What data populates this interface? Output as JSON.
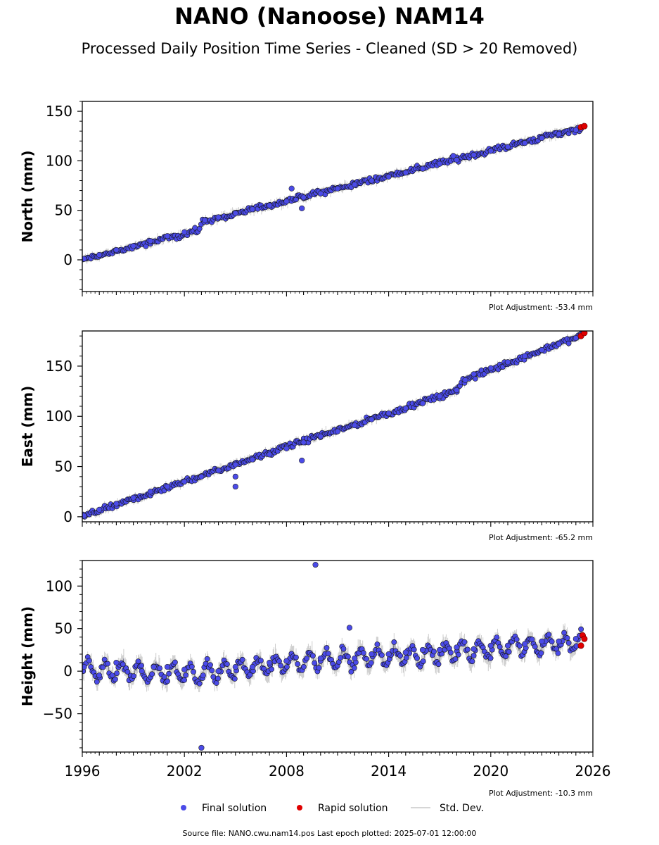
{
  "chart_data": {
    "type": "scatter",
    "title": "NANO (Nanoose) NAM14",
    "subtitle": "Processed Daily Position Time Series - Cleaned (SD > 20 Removed)",
    "source": "Source file: NANO.cwu.nam14.pos  Last epoch plotted: 2025-07-01 12:00:00",
    "xlim": [
      1996,
      2026
    ],
    "x_ticks": [
      1996,
      2002,
      2008,
      2014,
      2020,
      2026
    ],
    "x_tick_labels": [
      "1996",
      "2002",
      "2008",
      "2014",
      "2020",
      "2026"
    ],
    "legend": {
      "placement": "bottom",
      "entries": [
        {
          "label": "Final solution",
          "color": "#4b4be8"
        },
        {
          "label": "Rapid solution",
          "color": "#e00000"
        },
        {
          "label": "Std. Dev.",
          "color": "#c8c8c8"
        }
      ]
    },
    "panels": [
      {
        "ylabel": "North (mm)",
        "ylim": [
          -32,
          160
        ],
        "y_ticks": [
          0,
          50,
          100,
          150
        ],
        "y_tick_labels": [
          "0",
          "50",
          "100",
          "150"
        ],
        "adjustment": "Plot Adjustment: -53.4 mm",
        "trend": [
          [
            1996.0,
            0
          ],
          [
            2002.9,
            30
          ],
          [
            2003.0,
            38
          ],
          [
            2025.5,
            134
          ]
        ],
        "final_points": [
          [
            1996.1,
            1
          ],
          [
            1997.0,
            5
          ],
          [
            1998.0,
            10
          ],
          [
            1999.0,
            14
          ],
          [
            2000.0,
            19
          ],
          [
            2001.0,
            24
          ],
          [
            2002.0,
            28
          ],
          [
            2003.2,
            40
          ],
          [
            2004.0,
            43
          ],
          [
            2005.0,
            47
          ],
          [
            2006.0,
            51
          ],
          [
            2007.0,
            55
          ],
          [
            2008.0,
            59
          ],
          [
            2008.3,
            72
          ],
          [
            2008.9,
            52
          ],
          [
            2009.0,
            63
          ],
          [
            2010.0,
            67
          ],
          [
            2011.0,
            72
          ],
          [
            2012.0,
            76
          ],
          [
            2013.0,
            80
          ],
          [
            2014.0,
            84
          ],
          [
            2015.0,
            88
          ],
          [
            2016.0,
            92
          ],
          [
            2017.0,
            97
          ],
          [
            2017.8,
            105
          ],
          [
            2018.0,
            101
          ],
          [
            2019.0,
            106
          ],
          [
            2020.0,
            110
          ],
          [
            2021.0,
            114
          ],
          [
            2022.0,
            118
          ],
          [
            2023.0,
            123
          ],
          [
            2024.0,
            127
          ],
          [
            2025.0,
            131
          ]
        ],
        "rapid_points": [
          [
            2025.3,
            134
          ],
          [
            2025.5,
            135
          ]
        ]
      },
      {
        "ylabel": "East (mm)",
        "ylim": [
          -5,
          185
        ],
        "y_ticks": [
          0,
          50,
          100,
          150
        ],
        "y_tick_labels": [
          "0",
          "50",
          "100",
          "150"
        ],
        "adjustment": "Plot Adjustment: -65.2 mm",
        "trend": [
          [
            1996.0,
            0
          ],
          [
            2008.0,
            70
          ],
          [
            2014.0,
            103
          ],
          [
            2017.0,
            120
          ],
          [
            2018.0,
            125
          ],
          [
            2018.3,
            135
          ],
          [
            2025.5,
            182
          ]
        ],
        "final_points": [
          [
            1996.1,
            1
          ],
          [
            1997.0,
            7
          ],
          [
            1998.0,
            13
          ],
          [
            1999.0,
            19
          ],
          [
            2000.0,
            25
          ],
          [
            2001.0,
            30
          ],
          [
            2002.0,
            35
          ],
          [
            2003.0,
            40
          ],
          [
            2004.0,
            46
          ],
          [
            2005.0,
            52
          ],
          [
            2005.0,
            30
          ],
          [
            2005.0,
            40
          ],
          [
            2006.0,
            57
          ],
          [
            2007.0,
            62
          ],
          [
            2008.0,
            68
          ],
          [
            2008.9,
            56
          ],
          [
            2009.0,
            74
          ],
          [
            2010.0,
            80
          ],
          [
            2011.0,
            85
          ],
          [
            2012.0,
            91
          ],
          [
            2013.0,
            97
          ],
          [
            2014.0,
            103
          ],
          [
            2015.0,
            108
          ],
          [
            2016.0,
            113
          ],
          [
            2017.0,
            120
          ],
          [
            2018.0,
            126
          ],
          [
            2018.5,
            136
          ],
          [
            2019.0,
            142
          ],
          [
            2020.0,
            148
          ],
          [
            2021.0,
            154
          ],
          [
            2022.0,
            160
          ],
          [
            2023.0,
            166
          ],
          [
            2024.0,
            172
          ],
          [
            2025.0,
            178
          ]
        ],
        "rapid_points": [
          [
            2025.3,
            180
          ],
          [
            2025.5,
            183
          ]
        ]
      },
      {
        "ylabel": "Height (mm)",
        "ylim": [
          -95,
          130
        ],
        "y_ticks": [
          -50,
          0,
          50,
          100
        ],
        "y_tick_labels": [
          "−50",
          "0",
          "50",
          "100"
        ],
        "adjustment": "Plot Adjustment: -10.3 mm",
        "seasonal_trend": [
          [
            1996.0,
            2
          ],
          [
            2003.0,
            -3
          ],
          [
            2009.0,
            12
          ],
          [
            2018.0,
            22
          ],
          [
            2025.5,
            36
          ]
        ],
        "seasonal_amplitude_mm": 10,
        "final_points": [
          [
            1996.1,
            5
          ],
          [
            1997.0,
            -5
          ],
          [
            1998.0,
            10
          ],
          [
            1999.5,
            0
          ],
          [
            2000.2,
            5
          ],
          [
            2001.0,
            5
          ],
          [
            2002.0,
            2
          ],
          [
            2003.0,
            -90
          ],
          [
            2003.1,
            -5
          ],
          [
            2004.0,
            0
          ],
          [
            2005.0,
            5
          ],
          [
            2006.0,
            5
          ],
          [
            2007.0,
            10
          ],
          [
            2008.0,
            12
          ],
          [
            2009.7,
            125
          ],
          [
            2010.0,
            15
          ],
          [
            2011.7,
            51
          ],
          [
            2012.0,
            15
          ],
          [
            2013.0,
            20
          ],
          [
            2014.0,
            20
          ],
          [
            2015.0,
            22
          ],
          [
            2016.0,
            25
          ],
          [
            2017.0,
            25
          ],
          [
            2018.0,
            28
          ],
          [
            2019.0,
            26
          ],
          [
            2020.0,
            30
          ],
          [
            2021.0,
            30
          ],
          [
            2022.0,
            32
          ],
          [
            2023.0,
            35
          ],
          [
            2024.0,
            35
          ],
          [
            2025.0,
            38
          ]
        ],
        "rapid_points": [
          [
            2025.3,
            30
          ],
          [
            2025.4,
            42
          ],
          [
            2025.5,
            38
          ]
        ]
      }
    ]
  }
}
